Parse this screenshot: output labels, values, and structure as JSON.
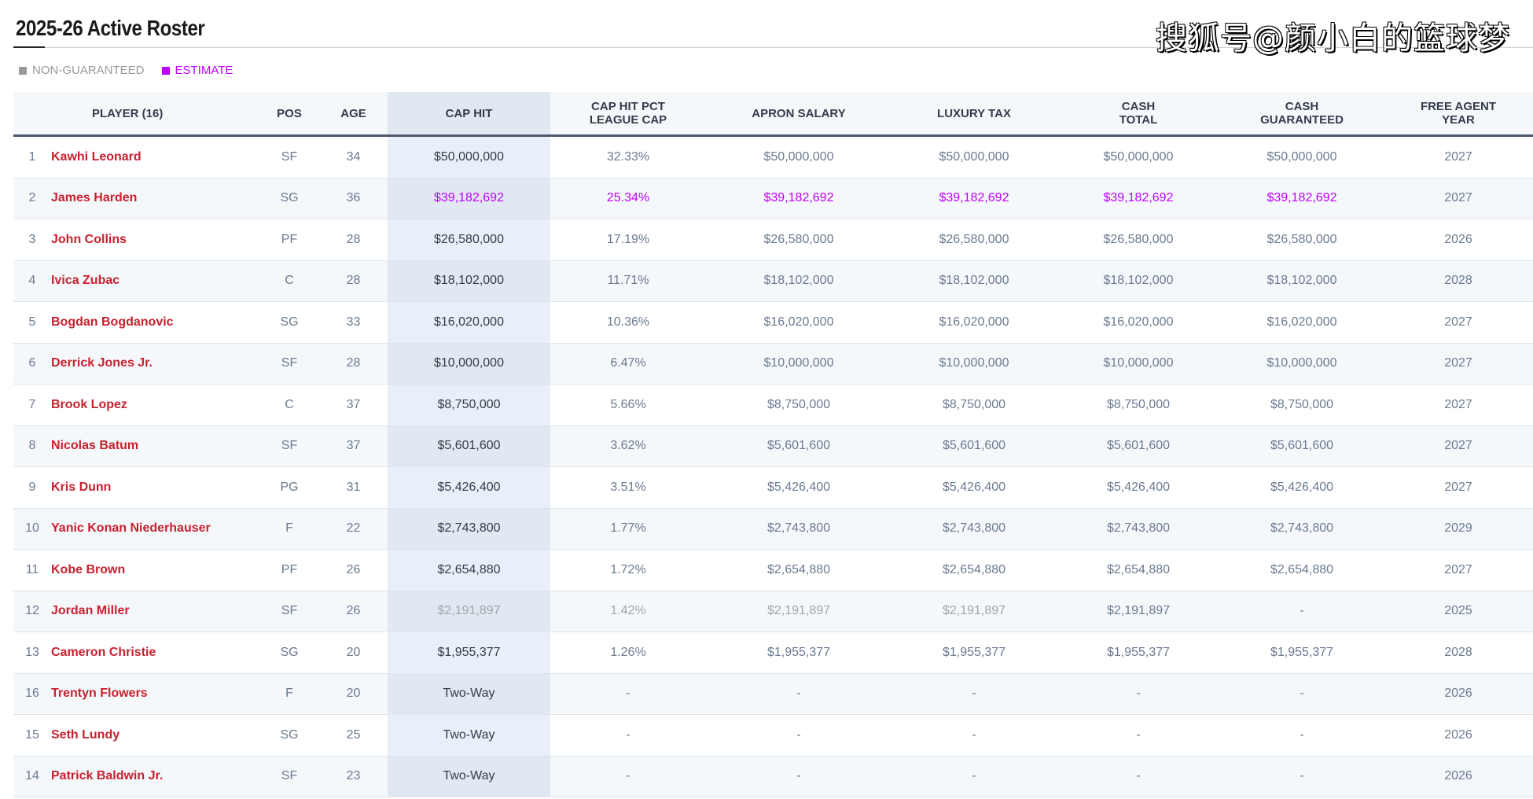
{
  "title": "2025-26 Active Roster",
  "watermark": "搜狐号@颜小白的篮球梦",
  "legend": {
    "non_guaranteed": "NON-GUARANTEED",
    "estimate": "ESTIMATE"
  },
  "colors": {
    "player_link": "#c8202f",
    "estimate": "#c000ff",
    "non_guaranteed": "#9a9a9a",
    "header_rule": "#4d596b"
  },
  "columns": [
    "",
    "PLAYER (16)",
    "POS",
    "AGE",
    "CAP HIT",
    "CAP HIT PCT\nLEAGUE CAP",
    "APRON SALARY",
    "LUXURY TAX",
    "CASH\nTOTAL",
    "CASH\nGUARANTEED",
    "FREE AGENT\nYEAR"
  ],
  "rows": [
    {
      "cells": [
        "1",
        "Kawhi Leonard",
        "SF",
        "34",
        "$50,000,000",
        "32.33%",
        "$50,000,000",
        "$50,000,000",
        "$50,000,000",
        "$50,000,000",
        "2027"
      ]
    },
    {
      "cells": [
        "2",
        "James Harden",
        "SG",
        "36",
        "$39,182,692",
        "25.34%",
        "$39,182,692",
        "$39,182,692",
        "$39,182,692",
        "$39,182,692",
        "2027"
      ],
      "estimate": [
        4,
        5,
        6,
        7,
        8,
        9
      ]
    },
    {
      "cells": [
        "3",
        "John Collins",
        "PF",
        "28",
        "$26,580,000",
        "17.19%",
        "$26,580,000",
        "$26,580,000",
        "$26,580,000",
        "$26,580,000",
        "2026"
      ]
    },
    {
      "cells": [
        "4",
        "Ivica Zubac",
        "C",
        "28",
        "$18,102,000",
        "11.71%",
        "$18,102,000",
        "$18,102,000",
        "$18,102,000",
        "$18,102,000",
        "2028"
      ]
    },
    {
      "cells": [
        "5",
        "Bogdan Bogdanovic",
        "SG",
        "33",
        "$16,020,000",
        "10.36%",
        "$16,020,000",
        "$16,020,000",
        "$16,020,000",
        "$16,020,000",
        "2027"
      ]
    },
    {
      "cells": [
        "6",
        "Derrick Jones Jr.",
        "SF",
        "28",
        "$10,000,000",
        "6.47%",
        "$10,000,000",
        "$10,000,000",
        "$10,000,000",
        "$10,000,000",
        "2027"
      ]
    },
    {
      "cells": [
        "7",
        "Brook Lopez",
        "C",
        "37",
        "$8,750,000",
        "5.66%",
        "$8,750,000",
        "$8,750,000",
        "$8,750,000",
        "$8,750,000",
        "2027"
      ]
    },
    {
      "cells": [
        "8",
        "Nicolas Batum",
        "SF",
        "37",
        "$5,601,600",
        "3.62%",
        "$5,601,600",
        "$5,601,600",
        "$5,601,600",
        "$5,601,600",
        "2027"
      ]
    },
    {
      "cells": [
        "9",
        "Kris Dunn",
        "PG",
        "31",
        "$5,426,400",
        "3.51%",
        "$5,426,400",
        "$5,426,400",
        "$5,426,400",
        "$5,426,400",
        "2027"
      ]
    },
    {
      "cells": [
        "10",
        "Yanic Konan Niederhauser",
        "F",
        "22",
        "$2,743,800",
        "1.77%",
        "$2,743,800",
        "$2,743,800",
        "$2,743,800",
        "$2,743,800",
        "2029"
      ]
    },
    {
      "cells": [
        "11",
        "Kobe Brown",
        "PF",
        "26",
        "$2,654,880",
        "1.72%",
        "$2,654,880",
        "$2,654,880",
        "$2,654,880",
        "$2,654,880",
        "2027"
      ]
    },
    {
      "cells": [
        "12",
        "Jordan Miller",
        "SF",
        "26",
        "$2,191,897",
        "1.42%",
        "$2,191,897",
        "$2,191,897",
        "$2,191,897",
        "-",
        "2025"
      ],
      "non_guaranteed": [
        4,
        5,
        6,
        7
      ]
    },
    {
      "cells": [
        "13",
        "Cameron Christie",
        "SG",
        "20",
        "$1,955,377",
        "1.26%",
        "$1,955,377",
        "$1,955,377",
        "$1,955,377",
        "$1,955,377",
        "2028"
      ]
    },
    {
      "cells": [
        "16",
        "Trentyn Flowers",
        "F",
        "20",
        "Two-Way",
        "-",
        "-",
        "-",
        "-",
        "-",
        "2026"
      ]
    },
    {
      "cells": [
        "15",
        "Seth Lundy",
        "SG",
        "25",
        "Two-Way",
        "-",
        "-",
        "-",
        "-",
        "-",
        "2026"
      ]
    },
    {
      "cells": [
        "14",
        "Patrick Baldwin Jr.",
        "SF",
        "23",
        "Two-Way",
        "-",
        "-",
        "-",
        "-",
        "-",
        "2026"
      ]
    }
  ]
}
